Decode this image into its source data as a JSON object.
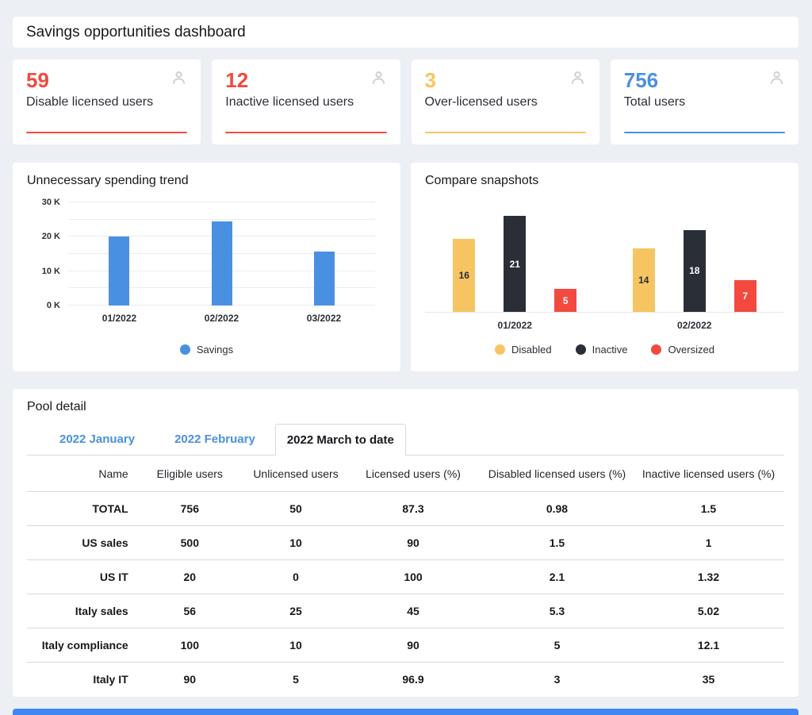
{
  "colors": {
    "background": "#eceff4",
    "card": "#ffffff",
    "red": "#f3493f",
    "yellow": "#f6c562",
    "blue": "#4a90e2",
    "dark": "#2a2e37",
    "grid": "#ececec",
    "border": "#d9d9d9",
    "icon_gray": "#c9ccd1",
    "footer_bar": "#4285f4"
  },
  "header": {
    "title": "Savings opportunities dashboard"
  },
  "kpi_cards": [
    {
      "value": "59",
      "label": "Disable licensed users",
      "color": "#f3493f",
      "icon": "user-icon"
    },
    {
      "value": "12",
      "label": "Inactive licensed users",
      "color": "#f3493f",
      "icon": "user-icon"
    },
    {
      "value": "3",
      "label": "Over-licensed users",
      "color": "#f6c562",
      "icon": "user-icon"
    },
    {
      "value": "756",
      "label": "Total users",
      "color": "#4a90e2",
      "icon": "user-icon"
    }
  ],
  "chart_data": [
    {
      "type": "bar",
      "title": "Unnecessary spending trend",
      "categories": [
        "01/2022",
        "02/2022",
        "03/2022"
      ],
      "series": [
        {
          "name": "Savings",
          "color": "#4a90e2",
          "values": [
            20000,
            24500,
            15800
          ]
        }
      ],
      "ylim": [
        0,
        30000
      ],
      "yticks": [
        0,
        10000,
        20000,
        30000
      ],
      "ytick_labels": [
        "0 K",
        "10 K",
        "20 K",
        "30 K"
      ],
      "gridline_step": 5000,
      "grid": true,
      "legend_position": "bottom"
    },
    {
      "type": "bar",
      "title": "Compare snapshots",
      "categories": [
        "01/2022",
        "02/2022"
      ],
      "series": [
        {
          "name": "Disabled",
          "color": "#f6c562",
          "label_color": "#2a2e37",
          "values": [
            16,
            14
          ]
        },
        {
          "name": "Inactive",
          "color": "#2a2e37",
          "label_color": "#ffffff",
          "values": [
            21,
            18
          ]
        },
        {
          "name": "Oversized",
          "color": "#f3493f",
          "label_color": "#ffffff",
          "values": [
            5,
            7
          ]
        }
      ],
      "data_labels": true,
      "ylim": [
        0,
        24
      ],
      "grid": false,
      "legend_position": "bottom"
    }
  ],
  "pool_detail": {
    "title": "Pool detail",
    "tabs": [
      {
        "label": "2022 January",
        "active": false
      },
      {
        "label": "2022 February",
        "active": false
      },
      {
        "label": "2022 March to date",
        "active": true
      }
    ],
    "table": {
      "columns": [
        "Name",
        "Eligible users",
        "Unlicensed users",
        "Licensed users (%)",
        "Disabled licensed users (%)",
        "Inactive licensed users (%)"
      ],
      "column_widths": [
        "14%",
        "15%",
        "13%",
        "18%",
        "20%",
        "20%"
      ],
      "rows": [
        [
          "TOTAL",
          "756",
          "50",
          "87.3",
          "0.98",
          "1.5"
        ],
        [
          "US sales",
          "500",
          "10",
          "90",
          "1.5",
          "1"
        ],
        [
          "US IT",
          "20",
          "0",
          "100",
          "2.1",
          "1.32"
        ],
        [
          "Italy sales",
          "56",
          "25",
          "45",
          "5.3",
          "5.02"
        ],
        [
          "Italy compliance",
          "100",
          "10",
          "90",
          "5",
          "12.1"
        ],
        [
          "Italy IT",
          "90",
          "5",
          "96.9",
          "3",
          "35"
        ]
      ]
    }
  }
}
